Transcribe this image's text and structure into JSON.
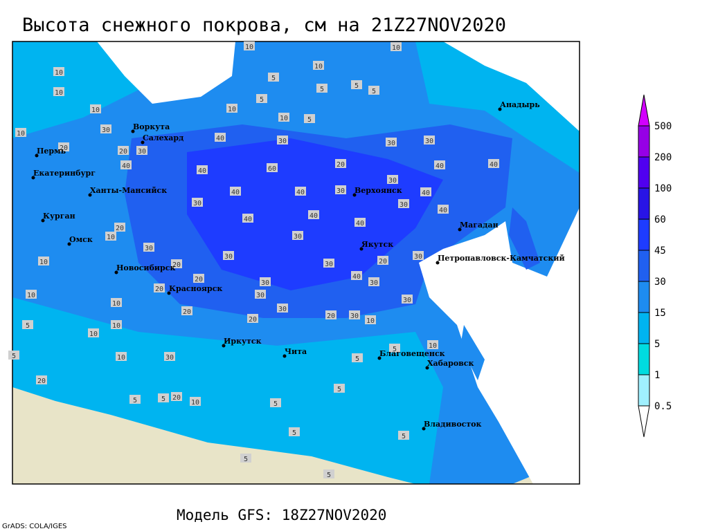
{
  "title": "Высота снежного покрова, см на 21Z27NOV2020",
  "subtitle": "Модель GFS: 18Z27NOV2020",
  "credit": "GrADS: COLA/IGES",
  "cities": [
    "Воркута",
    "Салехард",
    "Пермь",
    "Екатеринбург",
    "Ханты-Мансийск",
    "Курган",
    "Омск",
    "Новосибирск",
    "Красноярск",
    "Иркутск",
    "Чита",
    "Верхоянск",
    "Якутск",
    "Магадан",
    "Петропавловск-Камчатский",
    "Анадырь",
    "Благовещенск",
    "Хабаровск",
    "Владивосток"
  ],
  "contour_labels": [
    10,
    10,
    10,
    5,
    10,
    5,
    5,
    10,
    5,
    10,
    5,
    5,
    10,
    30,
    10,
    10,
    20,
    20,
    30,
    40,
    30,
    30,
    30,
    40,
    40,
    60,
    20,
    40,
    40,
    40,
    40,
    30,
    30,
    40,
    30,
    40,
    30,
    40,
    40,
    40,
    20,
    10,
    30,
    30,
    30,
    30,
    20,
    30,
    10,
    20,
    20,
    30,
    40,
    30,
    10,
    20,
    30,
    10,
    30,
    30,
    20,
    30,
    10,
    10,
    20,
    20,
    10,
    5,
    10,
    5,
    10,
    30,
    5,
    20,
    5,
    20,
    10,
    5,
    5,
    5,
    5,
    5,
    5,
    5,
    5
  ],
  "colorbar": {
    "levels": [
      0.5,
      1,
      5,
      15,
      30,
      45,
      60,
      100,
      200,
      500
    ],
    "colors": [
      "#ffffff",
      "#a0f0ff",
      "#00dce0",
      "#00b4f0",
      "#1e8cf0",
      "#2060f0",
      "#1e3cff",
      "#2814e6",
      "#5000f0",
      "#9600e6",
      "#d200ff"
    ]
  }
}
